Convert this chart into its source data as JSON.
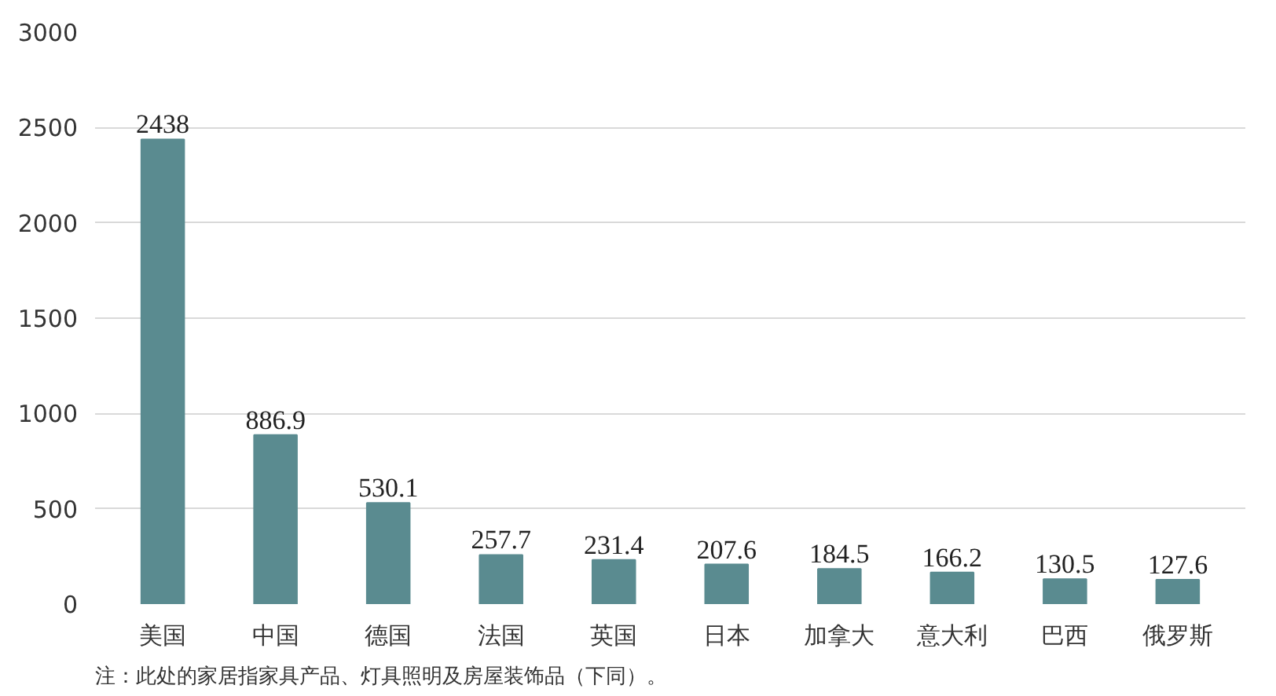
{
  "chart_data": {
    "type": "bar",
    "categories": [
      "美国",
      "中国",
      "德国",
      "法国",
      "英国",
      "日本",
      "加拿大",
      "意大利",
      "巴西",
      "俄罗斯"
    ],
    "values": [
      2438,
      886.9,
      530.1,
      257.7,
      231.4,
      207.6,
      184.5,
      166.2,
      130.5,
      127.6
    ],
    "color": "#5a8b90",
    "ylim": [
      0,
      3000
    ],
    "yticks": [
      0,
      500,
      1000,
      1500,
      2000,
      2500,
      3000
    ],
    "grid": "y",
    "data_labels": true,
    "annotations": [
      "注：此处的家居指家具产品、灯具照明及房屋装饰品（下同）。"
    ]
  }
}
